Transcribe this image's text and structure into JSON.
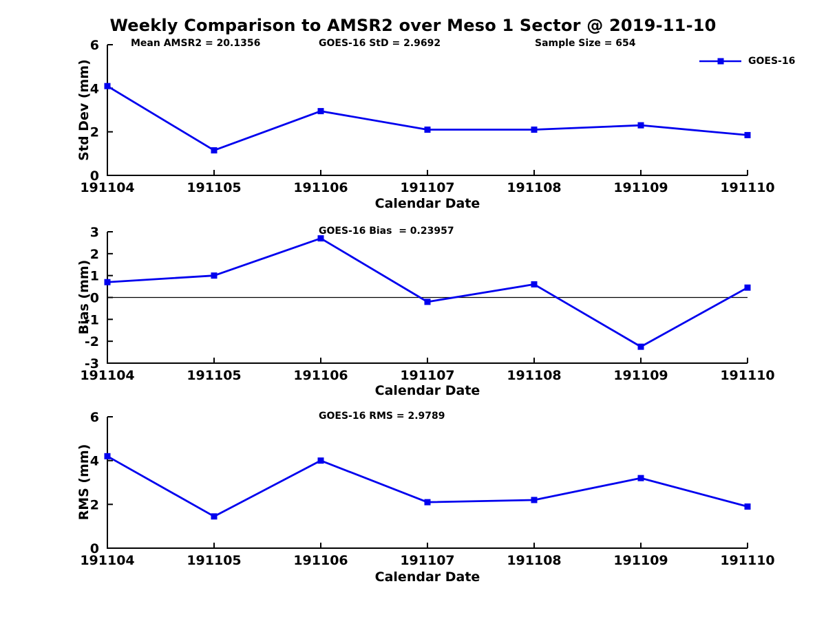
{
  "figure": {
    "title": "Weekly Comparison to AMSR2 over Meso 1 Sector @ 2019-11-10",
    "background": "#ffffff",
    "axis_color": "#000000",
    "series_color": "#0000ee"
  },
  "legend": {
    "label": "GOES-16",
    "marker": "square",
    "color": "#0000ee",
    "position": "top-right"
  },
  "chart_data": [
    {
      "type": "line",
      "name": "std-dev",
      "annotations": [
        "Mean AMSR2 = 20.1356",
        "GOES-16 StD = 2.9692",
        "Sample Size = 654"
      ],
      "categories": [
        "191104",
        "191105",
        "191106",
        "191107",
        "191108",
        "191109",
        "191110"
      ],
      "series": [
        {
          "name": "GOES-16",
          "values": [
            4.1,
            1.15,
            2.95,
            2.1,
            2.1,
            2.3,
            1.85
          ]
        }
      ],
      "xlabel": "Calendar Date",
      "ylabel": "Std Dev (mm)",
      "ylim": [
        0,
        6
      ],
      "yticks": [
        0,
        2,
        4,
        6
      ],
      "zero_line": false,
      "grid": false
    },
    {
      "type": "line",
      "name": "bias",
      "annotations": [
        "GOES-16 Bias  = 0.23957"
      ],
      "categories": [
        "191104",
        "191105",
        "191106",
        "191107",
        "191108",
        "191109",
        "191110"
      ],
      "series": [
        {
          "name": "GOES-16",
          "values": [
            0.7,
            1.0,
            2.7,
            -0.2,
            0.6,
            -2.25,
            0.45
          ]
        }
      ],
      "xlabel": "Calendar Date",
      "ylabel": "Bias (mm)",
      "ylim": [
        -3,
        3
      ],
      "yticks": [
        -3,
        -2,
        -1,
        0,
        1,
        2,
        3
      ],
      "zero_line": true,
      "grid": false
    },
    {
      "type": "line",
      "name": "rms",
      "annotations": [
        "GOES-16 RMS = 2.9789"
      ],
      "categories": [
        "191104",
        "191105",
        "191106",
        "191107",
        "191108",
        "191109",
        "191110"
      ],
      "series": [
        {
          "name": "GOES-16",
          "values": [
            4.2,
            1.45,
            4.0,
            2.1,
            2.2,
            3.2,
            1.9
          ]
        }
      ],
      "xlabel": "Calendar Date",
      "ylabel": "RMS (mm)",
      "ylim": [
        0,
        6
      ],
      "yticks": [
        0,
        2,
        4,
        6
      ],
      "zero_line": false,
      "grid": false
    }
  ]
}
